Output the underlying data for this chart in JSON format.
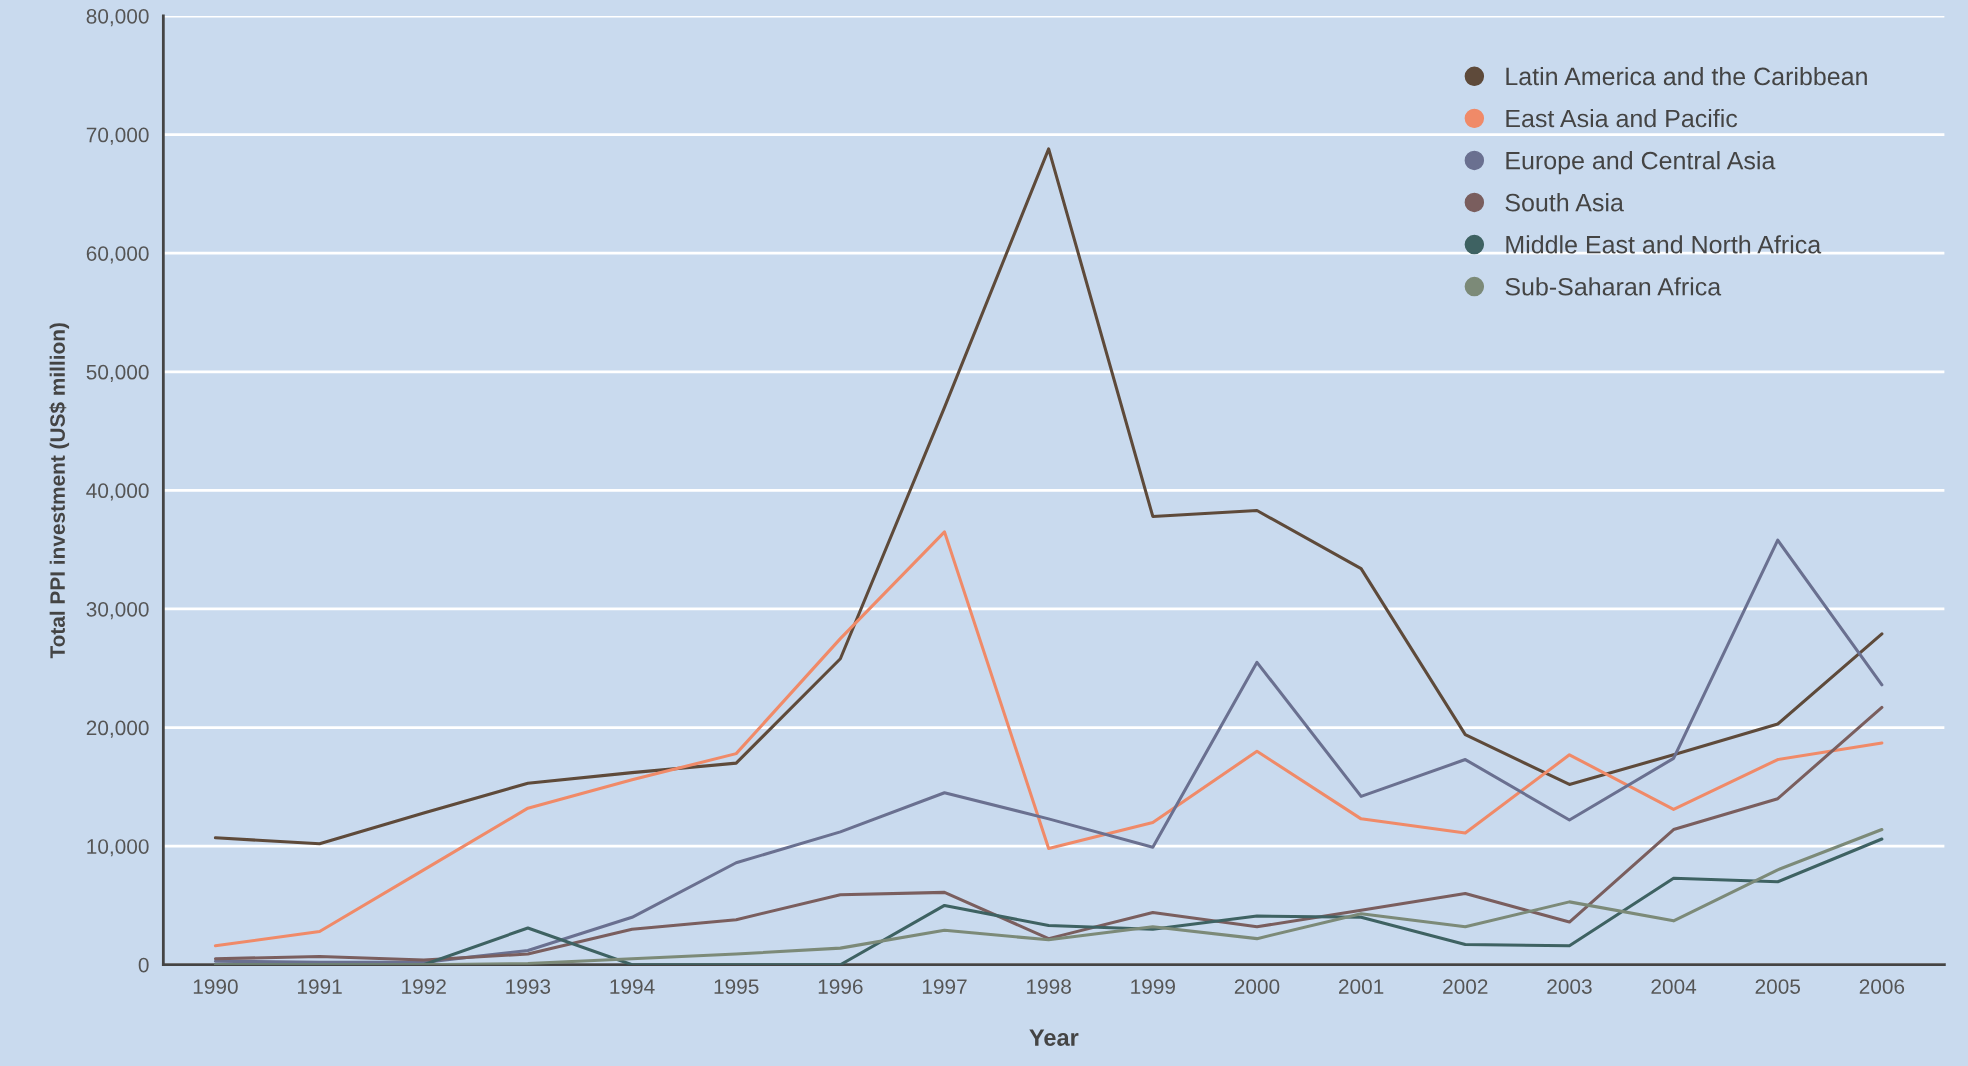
{
  "chart_data": {
    "type": "line",
    "xlabel": "Year",
    "ylabel": "Total PPI investment (US$ million)",
    "x": [
      1990,
      1991,
      1992,
      1993,
      1994,
      1995,
      1996,
      1997,
      1998,
      1999,
      2000,
      2001,
      2002,
      2003,
      2004,
      2005,
      2006
    ],
    "xlim": [
      1989.5,
      2006.6
    ],
    "xticks": [
      1990,
      1991,
      1992,
      1993,
      1994,
      1995,
      1996,
      1997,
      1998,
      1999,
      2000,
      2001,
      2002,
      2003,
      2004,
      2005,
      2006
    ],
    "ylim": [
      0,
      80000
    ],
    "yticks": [
      0,
      {
        "value": 10000,
        "label": "10,000"
      },
      {
        "value": 20000,
        "label": "20,000"
      },
      {
        "value": 30000,
        "label": "30,000"
      },
      {
        "value": 40000,
        "label": "40,000"
      },
      {
        "value": 50000,
        "label": "50,000"
      },
      {
        "value": 60000,
        "label": "60,000"
      },
      {
        "value": 70000,
        "label": "70,000"
      },
      {
        "value": 80000,
        "label": "80,000"
      }
    ],
    "grid": "y",
    "legend": "top right",
    "marker": "none",
    "line_style": "solid",
    "series": [
      {
        "name": "Latin America and the Caribbean",
        "color": "#5e4a3a",
        "values": [
          10700,
          10200,
          12800,
          15300,
          16200,
          17000,
          25800,
          47000,
          68800,
          37800,
          38300,
          33400,
          19400,
          15200,
          17700,
          20300,
          27900
        ]
      },
      {
        "name": "East Asia and Pacific",
        "color": "#f08a68",
        "values": [
          1600,
          2800,
          8000,
          13200,
          15600,
          17800,
          27500,
          36500,
          9800,
          12000,
          18000,
          12300,
          11100,
          17700,
          13100,
          17300,
          18700
        ]
      },
      {
        "name": "Europe and Central Asia",
        "color": "#6a7090",
        "values": [
          300,
          200,
          200,
          1200,
          4000,
          8600,
          11200,
          14500,
          12300,
          9900,
          25500,
          14200,
          17300,
          12200,
          17400,
          35800,
          23600
        ]
      },
      {
        "name": "South Asia",
        "color": "#7a5e5e",
        "values": [
          500,
          700,
          400,
          900,
          3000,
          3800,
          5900,
          6100,
          2200,
          4400,
          3200,
          4600,
          6000,
          3600,
          11400,
          14000,
          21700
        ]
      },
      {
        "name": "Middle East and North Africa",
        "color": "#3e6262",
        "values": [
          0,
          0,
          0,
          3100,
          0,
          0,
          0,
          5000,
          3300,
          3000,
          4100,
          4000,
          1700,
          1600,
          7300,
          7000,
          10600
        ]
      },
      {
        "name": "Sub-Saharan Africa",
        "color": "#7c8a78",
        "values": [
          0,
          0,
          0,
          100,
          500,
          900,
          1400,
          2900,
          2100,
          3200,
          2200,
          4300,
          3200,
          5300,
          3700,
          8000,
          11400
        ]
      }
    ]
  }
}
